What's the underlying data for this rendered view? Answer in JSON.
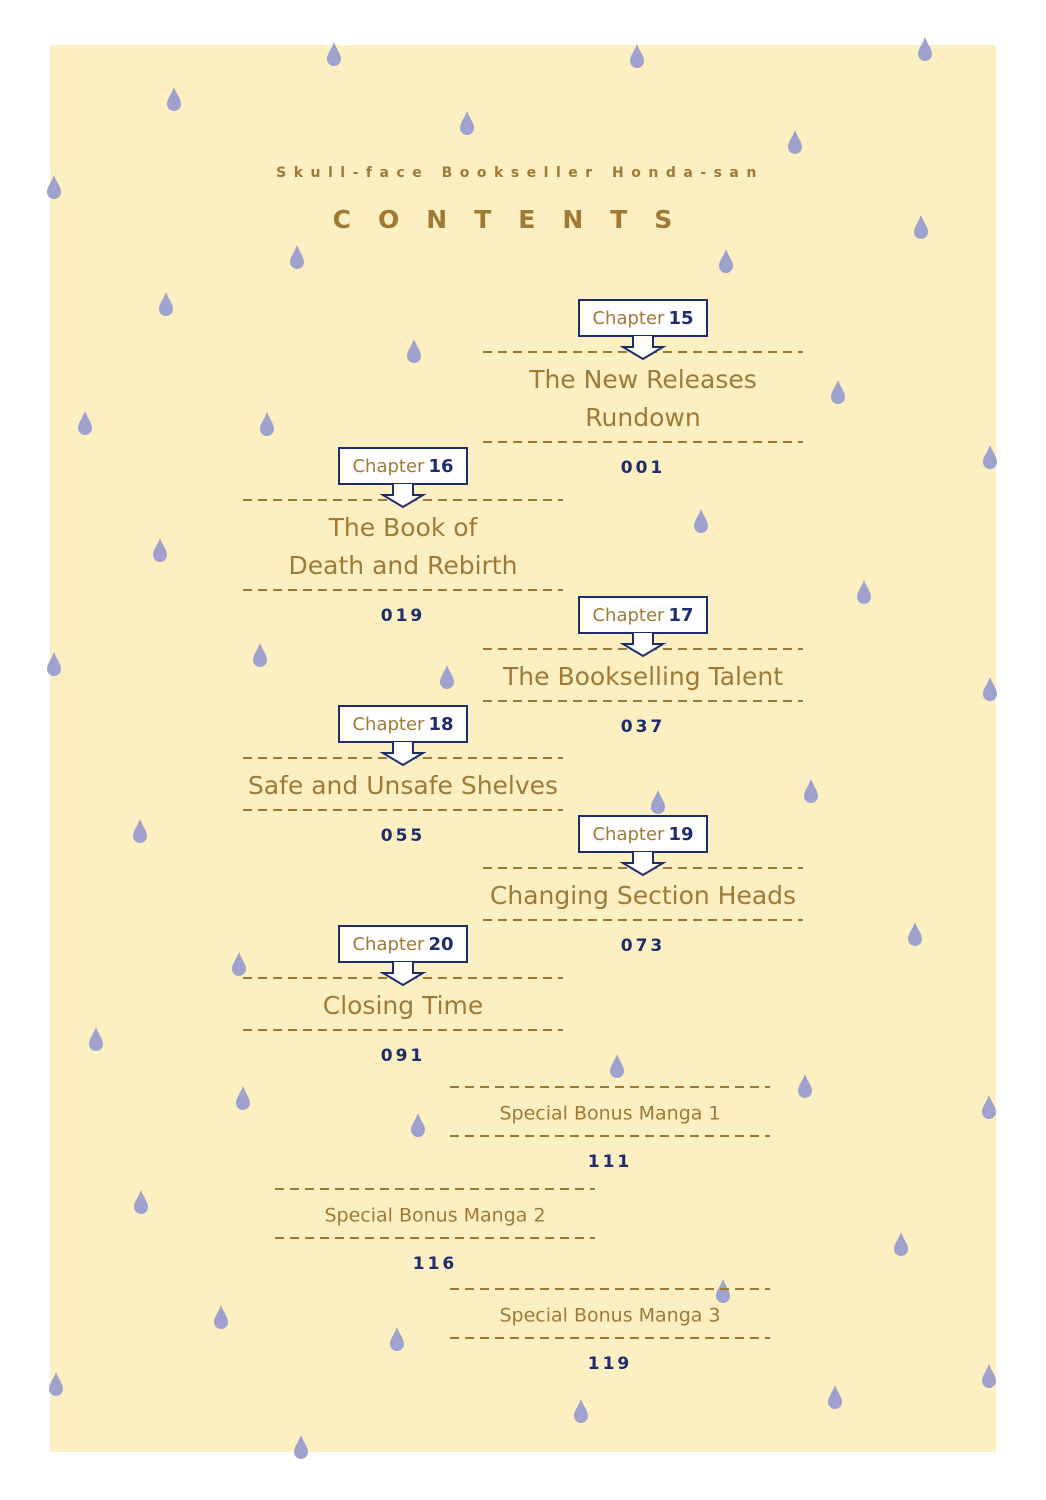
{
  "header": {
    "subtitle": "Skull-face Bookseller Honda-san",
    "title": "CONTENTS"
  },
  "chapters": [
    {
      "label": "Chapter",
      "number": "15",
      "title_lines": [
        "The New Releases",
        "Rundown"
      ],
      "page": "001"
    },
    {
      "label": "Chapter",
      "number": "16",
      "title_lines": [
        "The Book of",
        "Death and Rebirth"
      ],
      "page": "019"
    },
    {
      "label": "Chapter",
      "number": "17",
      "title_lines": [
        "The Bookselling Talent"
      ],
      "page": "037"
    },
    {
      "label": "Chapter",
      "number": "18",
      "title_lines": [
        "Safe and Unsafe Shelves"
      ],
      "page": "055"
    },
    {
      "label": "Chapter",
      "number": "19",
      "title_lines": [
        "Changing Section Heads"
      ],
      "page": "073"
    },
    {
      "label": "Chapter",
      "number": "20",
      "title_lines": [
        "Closing Time"
      ],
      "page": "091"
    }
  ],
  "bonus": [
    {
      "title": "Special Bonus Manga 1",
      "page": "111"
    },
    {
      "title": "Special Bonus Manga 2",
      "page": "116"
    },
    {
      "title": "Special Bonus Manga 3",
      "page": "119"
    }
  ]
}
